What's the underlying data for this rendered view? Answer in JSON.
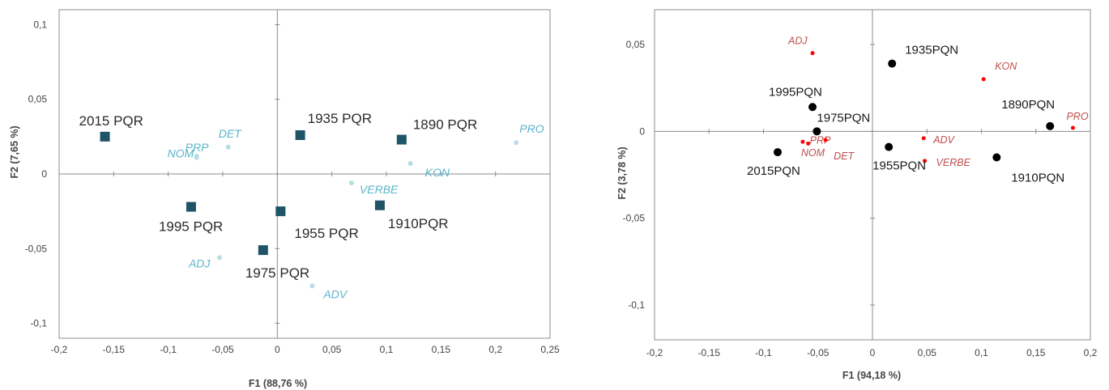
{
  "chart_data": [
    {
      "type": "scatter",
      "xlabel": "F1 (88,76 %)",
      "ylabel": "F2 (7,65 %)",
      "xlim": [
        -0.2,
        0.25
      ],
      "ylim": [
        -0.11,
        0.11
      ],
      "x_ticks": [
        "-0,2",
        "-0,15",
        "-0,1",
        "-0,05",
        "0",
        "0,05",
        "0,1",
        "0,15",
        "0,2",
        "0,25"
      ],
      "y_ticks": [
        "0,1",
        "0,05",
        "0",
        "-0,05",
        "-0,1"
      ],
      "grid": false,
      "observations": [
        {
          "label": "2015 PQR",
          "x": -0.158,
          "y": 0.025
        },
        {
          "label": "1935 PQR",
          "x": 0.021,
          "y": 0.026
        },
        {
          "label": "1890 PQR",
          "x": 0.114,
          "y": 0.023
        },
        {
          "label": "1995 PQR",
          "x": -0.079,
          "y": -0.022
        },
        {
          "label": "1955 PQR",
          "x": 0.003,
          "y": -0.025
        },
        {
          "label": "1910PQR",
          "x": 0.094,
          "y": -0.021
        },
        {
          "label": "1975 PQR",
          "x": -0.013,
          "y": -0.051
        }
      ],
      "variables": [
        {
          "label": "PRP",
          "x": -0.074,
          "y": 0.012
        },
        {
          "label": "DET",
          "x": -0.045,
          "y": 0.018
        },
        {
          "label": "NOM",
          "x": -0.074,
          "y": 0.011
        },
        {
          "label": "PRO",
          "x": 0.219,
          "y": 0.021
        },
        {
          "label": "KON",
          "x": 0.122,
          "y": 0.007
        },
        {
          "label": "VERBE",
          "x": 0.068,
          "y": -0.006
        },
        {
          "label": "ADJ",
          "x": -0.053,
          "y": -0.056
        },
        {
          "label": "ADV",
          "x": 0.032,
          "y": -0.075
        }
      ],
      "colors": {
        "observation": "#1f5466",
        "variable": "#b9dce6",
        "variable_label": "#5ab4cc"
      }
    },
    {
      "type": "scatter",
      "xlabel": "F1 (94,18 %)",
      "ylabel": "F2 (3,78 %)",
      "xlim": [
        -0.2,
        0.2
      ],
      "ylim": [
        -0.12,
        0.07
      ],
      "x_ticks": [
        "-0,2",
        "-0,15",
        "-0,1",
        "-0,05",
        "0",
        "0,05",
        "0,1",
        "0,15",
        "0,2"
      ],
      "y_ticks": [
        "0,05",
        "0",
        "-0,05",
        "-0,1"
      ],
      "grid": false,
      "observations": [
        {
          "label": "1935PQN",
          "x": 0.018,
          "y": 0.039
        },
        {
          "label": "1995PQN",
          "x": -0.055,
          "y": 0.014
        },
        {
          "label": "1975PQN",
          "x": -0.051,
          "y": 0.0
        },
        {
          "label": "1890PQN",
          "x": 0.163,
          "y": 0.003
        },
        {
          "label": "2015PQN",
          "x": -0.087,
          "y": -0.012
        },
        {
          "label": "1955PQN",
          "x": 0.015,
          "y": -0.009
        },
        {
          "label": "1910PQN",
          "x": 0.114,
          "y": -0.015
        }
      ],
      "variables": [
        {
          "label": "ADJ",
          "x": -0.055,
          "y": 0.045
        },
        {
          "label": "KON",
          "x": 0.102,
          "y": 0.03
        },
        {
          "label": "PRO",
          "x": 0.184,
          "y": 0.002
        },
        {
          "label": "ADV",
          "x": 0.047,
          "y": -0.004
        },
        {
          "label": "VERBE",
          "x": 0.048,
          "y": -0.017
        },
        {
          "label": "PRP",
          "x": -0.059,
          "y": -0.007
        },
        {
          "label": "NOM",
          "x": -0.064,
          "y": -0.006
        },
        {
          "label": "DET",
          "x": -0.043,
          "y": -0.005
        }
      ],
      "colors": {
        "observation": "#000000",
        "variable": "#ff0000",
        "variable_label": "#c0504d"
      }
    }
  ]
}
